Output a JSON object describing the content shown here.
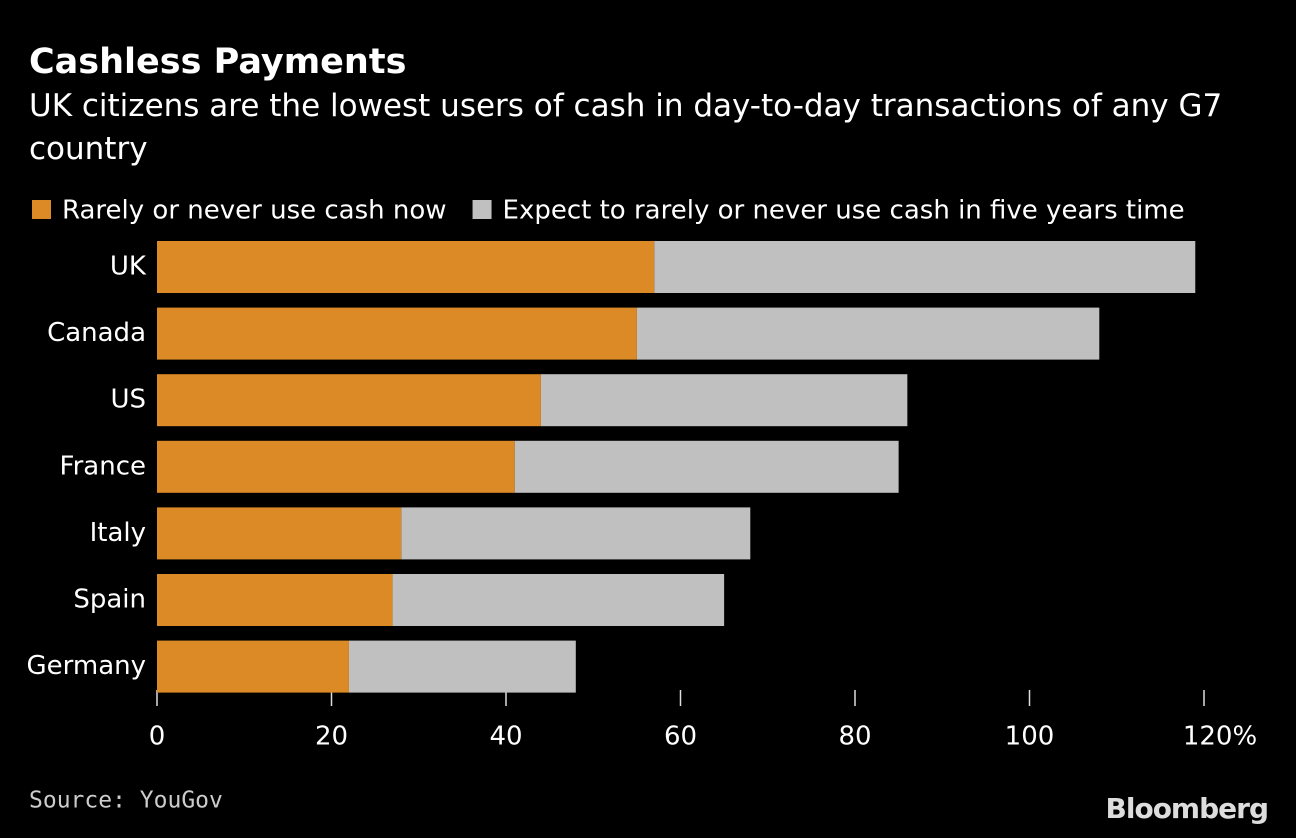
{
  "chart_data": {
    "type": "stacked-barh",
    "title": "Cashless Payments",
    "subtitle": "UK citizens are the lowest users of cash in day-to-day transactions of any G7 country",
    "categories": [
      "UK",
      "Canada",
      "US",
      "France",
      "Italy",
      "Spain",
      "Germany"
    ],
    "series": [
      {
        "name": "Rarely or never use cash now",
        "color": "#dc8a25",
        "values": [
          57,
          55,
          44,
          41,
          28,
          27,
          22
        ]
      },
      {
        "name": "Expect to rarely or never use cash in five years time",
        "color": "#c0c0c0",
        "values": [
          62,
          53,
          42,
          44,
          40,
          38,
          26
        ]
      }
    ],
    "xlim": [
      0,
      120
    ],
    "xticks": [
      0,
      20,
      40,
      60,
      80,
      100,
      {
        "value": 120,
        "label": "120%"
      }
    ],
    "source": "Source: YouGov",
    "brand": "Bloomberg"
  }
}
